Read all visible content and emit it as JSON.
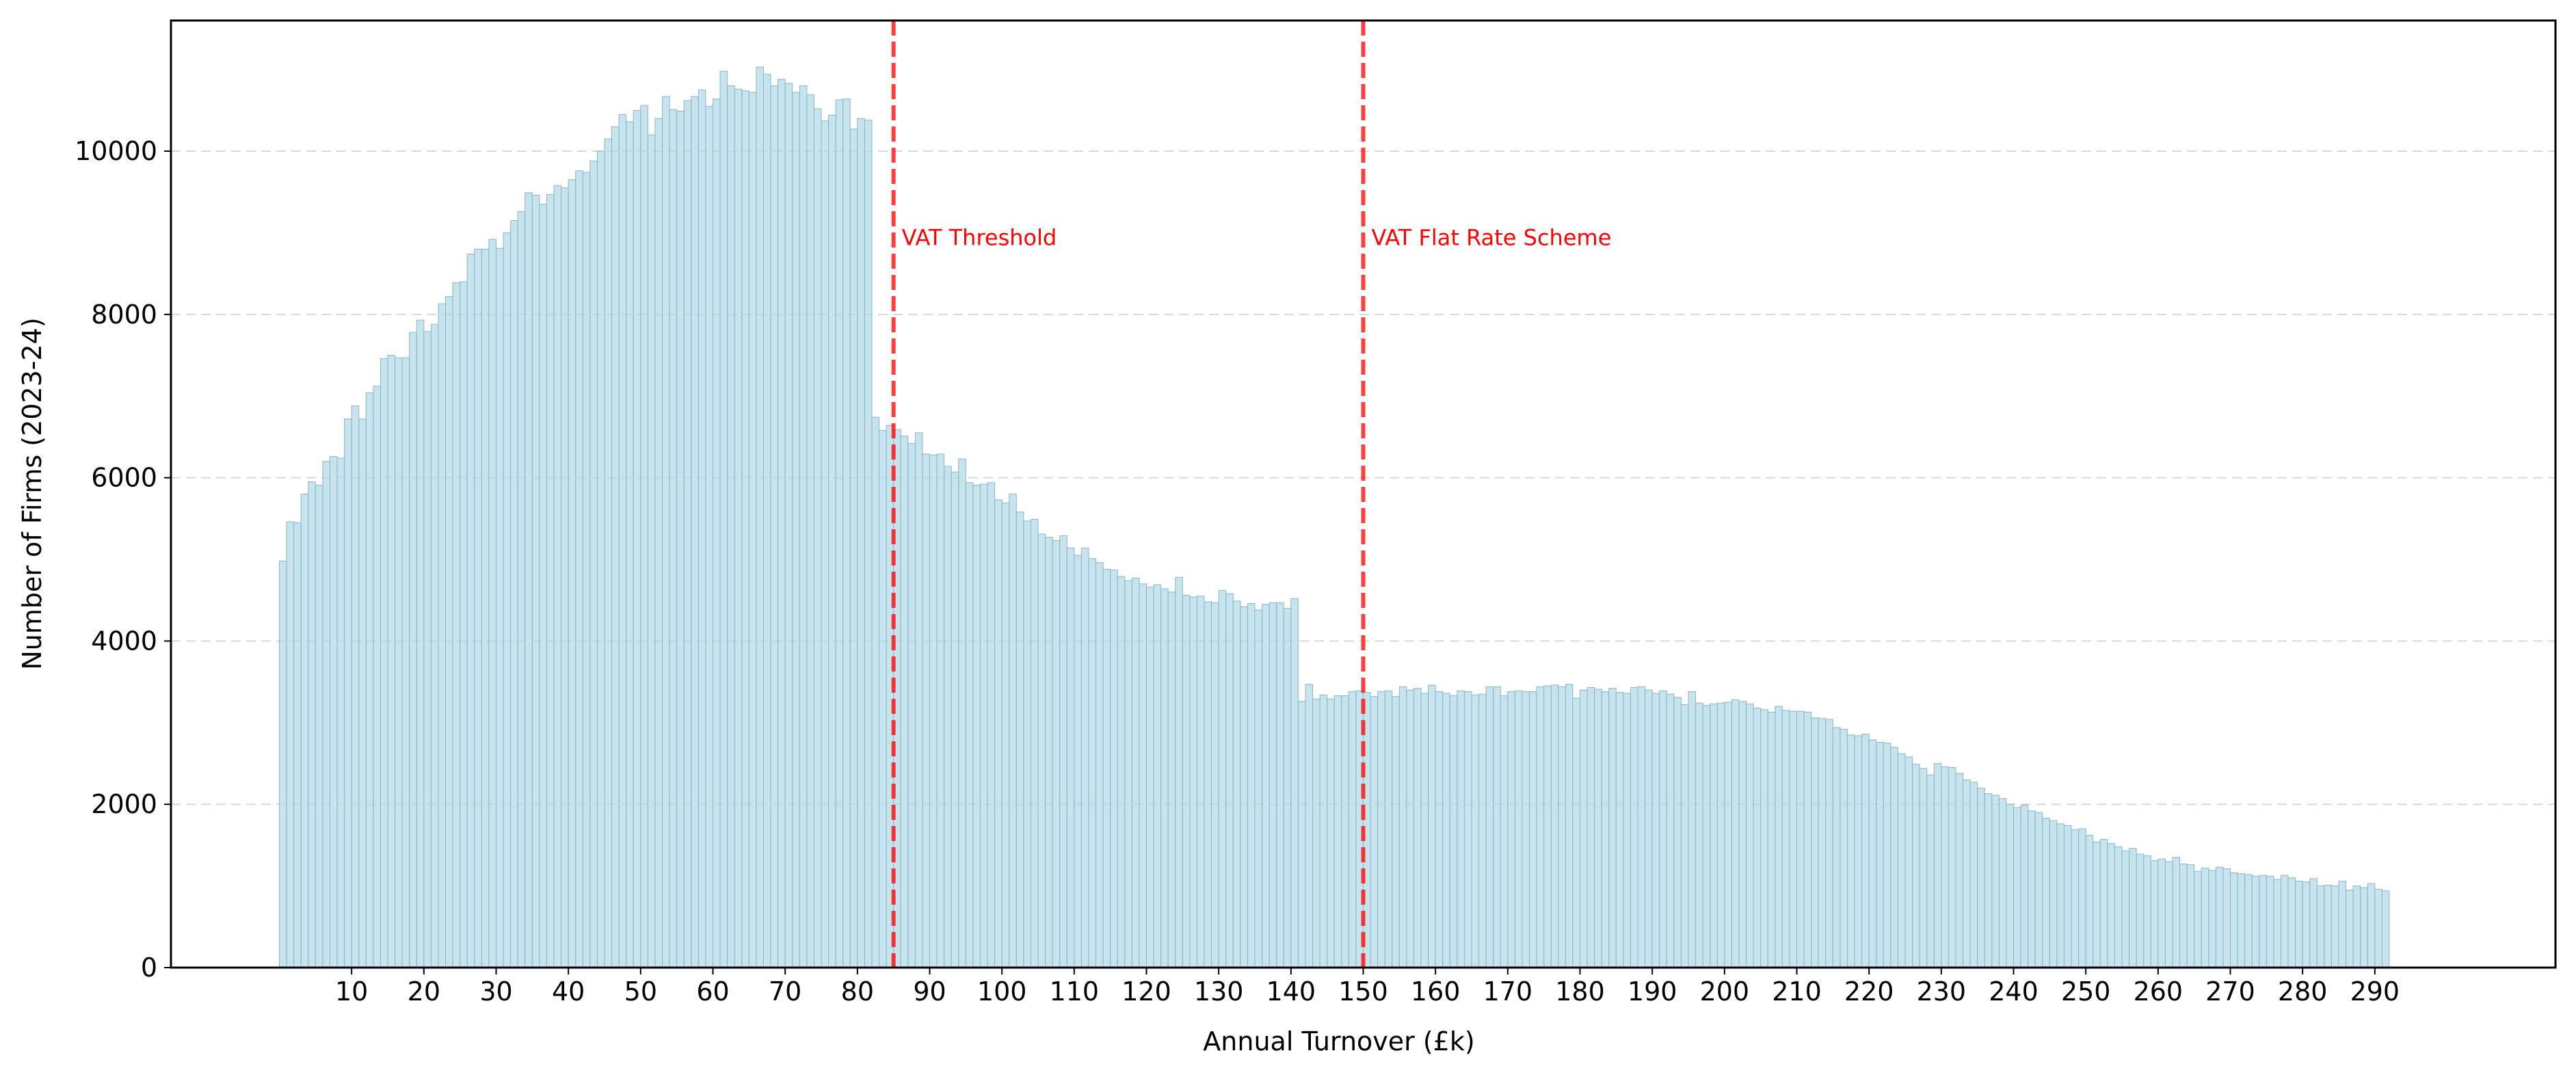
{
  "chart_data": {
    "type": "bar",
    "xlabel": "Annual Turnover (£k)",
    "ylabel": "Number of Firms (2023-24)",
    "xlim": [
      -15,
      315
    ],
    "ylim": [
      0,
      11600
    ],
    "x_ticks": [
      10,
      20,
      30,
      40,
      50,
      60,
      70,
      80,
      90,
      100,
      110,
      120,
      130,
      140,
      150,
      160,
      170,
      180,
      190,
      200,
      210,
      220,
      230,
      240,
      250,
      260,
      270,
      280,
      290
    ],
    "y_ticks": [
      0,
      2000,
      4000,
      6000,
      8000,
      10000
    ],
    "grid": "horizontal dashed",
    "bin_width": 1,
    "x_start": 0,
    "bar_color": "#add8e6",
    "counts": [
      4980,
      5460,
      5450,
      5800,
      5950,
      5910,
      6200,
      6260,
      6240,
      6720,
      6880,
      6720,
      7040,
      7120,
      7460,
      7500,
      7470,
      7470,
      7780,
      7930,
      7790,
      7880,
      8130,
      8220,
      8390,
      8400,
      8740,
      8800,
      8800,
      8920,
      8810,
      9000,
      9150,
      9260,
      9490,
      9460,
      9350,
      9470,
      9580,
      9550,
      9650,
      9760,
      9740,
      9880,
      10000,
      10150,
      10300,
      10450,
      10360,
      10500,
      10560,
      10200,
      10400,
      10670,
      10510,
      10490,
      10620,
      10670,
      10750,
      10550,
      10640,
      10980,
      10800,
      10760,
      10740,
      10720,
      11030,
      10940,
      10800,
      10880,
      10830,
      10720,
      10800,
      10690,
      10520,
      10370,
      10440,
      10630,
      10640,
      10270,
      10400,
      10380,
      6740,
      6580,
      6640,
      6590,
      6510,
      6420,
      6550,
      6290,
      6280,
      6290,
      6140,
      6070,
      6230,
      5940,
      5910,
      5920,
      5940,
      5730,
      5690,
      5800,
      5580,
      5470,
      5490,
      5310,
      5270,
      5230,
      5290,
      5140,
      5050,
      5140,
      5010,
      4960,
      4880,
      4870,
      4790,
      4740,
      4770,
      4700,
      4660,
      4690,
      4640,
      4600,
      4780,
      4560,
      4540,
      4550,
      4480,
      4470,
      4620,
      4580,
      4490,
      4420,
      4460,
      4380,
      4450,
      4470,
      4470,
      4400,
      4520,
      3260,
      3470,
      3290,
      3340,
      3290,
      3330,
      3330,
      3380,
      3390,
      3370,
      3320,
      3380,
      3390,
      3320,
      3440,
      3400,
      3420,
      3360,
      3460,
      3380,
      3360,
      3330,
      3390,
      3380,
      3340,
      3350,
      3440,
      3440,
      3330,
      3380,
      3390,
      3380,
      3380,
      3440,
      3450,
      3460,
      3440,
      3470,
      3300,
      3400,
      3430,
      3410,
      3380,
      3420,
      3370,
      3360,
      3430,
      3440,
      3400,
      3360,
      3390,
      3350,
      3310,
      3220,
      3380,
      3240,
      3210,
      3230,
      3240,
      3250,
      3280,
      3260,
      3230,
      3180,
      3160,
      3130,
      3200,
      3150,
      3140,
      3140,
      3130,
      3060,
      3050,
      3040,
      2940,
      2920,
      2850,
      2840,
      2860,
      2790,
      2760,
      2750,
      2700,
      2620,
      2580,
      2490,
      2440,
      2360,
      2500,
      2460,
      2450,
      2380,
      2300,
      2270,
      2200,
      2130,
      2110,
      2070,
      2000,
      1960,
      1990,
      1920,
      1900,
      1830,
      1800,
      1760,
      1740,
      1690,
      1700,
      1620,
      1540,
      1570,
      1520,
      1480,
      1430,
      1460,
      1390,
      1370,
      1310,
      1330,
      1300,
      1350,
      1270,
      1260,
      1180,
      1220,
      1190,
      1230,
      1210,
      1160,
      1150,
      1140,
      1120,
      1130,
      1120,
      1080,
      1130,
      1100,
      1060,
      1050,
      1090,
      1000,
      1010,
      1000,
      1060,
      950,
      1000,
      980,
      1030,
      960,
      940
    ],
    "annotations": [
      {
        "x": 85,
        "label": "VAT Threshold",
        "color": "#ff0000",
        "line_style": "dashed"
      },
      {
        "x": 150,
        "label": "VAT Flat Rate Scheme",
        "color": "#ff0000",
        "line_style": "dashed"
      }
    ]
  }
}
